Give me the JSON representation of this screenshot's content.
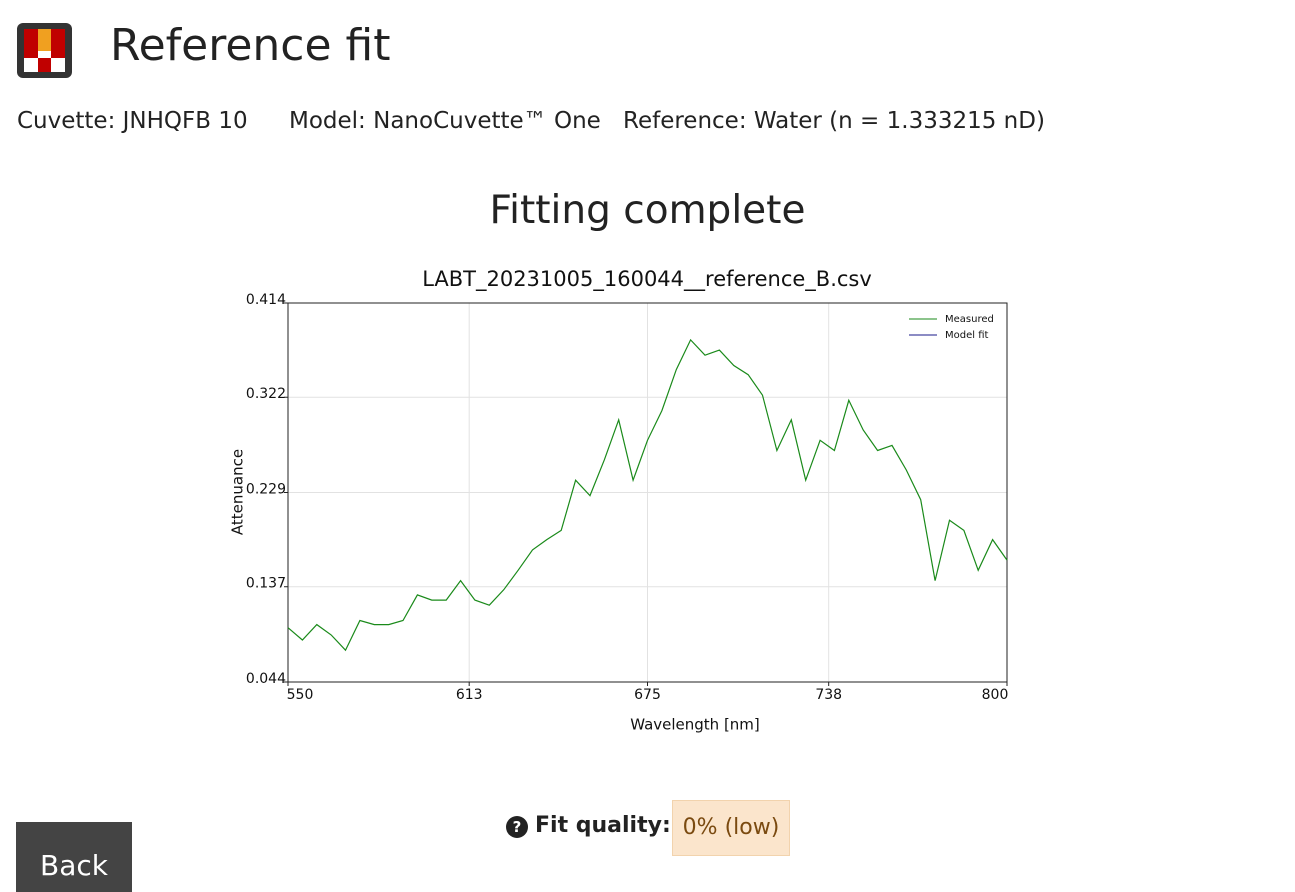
{
  "header": {
    "title": "Reference fit"
  },
  "info": {
    "cuvette": "Cuvette: JNHQFB 10",
    "model": "Model: NanoCuvette™ One",
    "reference": "Reference: Water (n = 1.333215 nD)"
  },
  "status": "Fitting complete",
  "chart_data": {
    "type": "line",
    "title": "LABT_20231005_160044__reference_B.csv",
    "x_label": "Wavelength [nm]",
    "y_label": "Attenuance",
    "x": [
      550,
      555,
      560,
      565,
      570,
      575,
      580,
      585,
      590,
      595,
      600,
      605,
      610,
      615,
      620,
      625,
      630,
      635,
      640,
      645,
      650,
      655,
      660,
      665,
      670,
      675,
      680,
      685,
      690,
      695,
      700,
      705,
      710,
      715,
      720,
      725,
      730,
      735,
      740,
      745,
      750,
      755,
      760,
      765,
      770,
      775,
      780,
      785,
      790,
      795,
      800
    ],
    "series": [
      {
        "name": "Measured",
        "color": "#1a8a1a",
        "values": [
          0.097,
          0.085,
          0.1,
          0.09,
          0.075,
          0.104,
          0.1,
          0.1,
          0.104,
          0.129,
          0.124,
          0.124,
          0.143,
          0.124,
          0.119,
          0.134,
          0.153,
          0.173,
          0.183,
          0.192,
          0.241,
          0.226,
          0.261,
          0.3,
          0.241,
          0.28,
          0.309,
          0.349,
          0.378,
          0.363,
          0.368,
          0.353,
          0.344,
          0.324,
          0.27,
          0.3,
          0.241,
          0.28,
          0.27,
          0.319,
          0.29,
          0.27,
          0.275,
          0.251,
          0.222,
          0.143,
          0.202,
          0.192,
          0.153,
          0.183,
          0.163
        ]
      },
      {
        "name": "Model fit",
        "color": "#1a1a8a",
        "values": [
          null,
          null,
          null,
          null,
          null,
          null,
          null,
          null,
          null,
          null,
          null,
          null,
          null,
          null,
          null,
          null,
          null,
          null,
          null,
          null,
          null,
          null,
          null,
          null,
          null,
          null,
          null,
          null,
          null,
          null,
          null,
          null,
          null,
          null,
          null,
          null,
          null,
          null,
          null,
          null,
          null,
          null,
          null,
          null,
          null,
          null,
          null,
          null,
          null,
          null,
          null
        ]
      }
    ],
    "xlim": [
      550,
      800
    ],
    "xticks": [
      550,
      613,
      675,
      738,
      800
    ],
    "ylim": [
      0.044,
      0.414
    ],
    "yticks": [
      0.044,
      0.137,
      0.229,
      0.322,
      0.414
    ],
    "grid": true,
    "legend": "upper right"
  },
  "fit_quality": {
    "label": "Fit quality:",
    "value": "0% (low)"
  },
  "buttons": {
    "back": "Back"
  }
}
